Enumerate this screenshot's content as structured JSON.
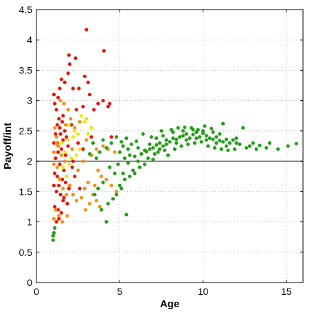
{
  "chart_data": {
    "type": "scatter",
    "title": "",
    "xlabel": "Age",
    "ylabel": "Payoff/int",
    "xlim": [
      0,
      16
    ],
    "ylim": [
      0,
      4.5
    ],
    "xticks": [
      0,
      5,
      10,
      15
    ],
    "yticks": [
      0,
      0.5,
      1,
      1.5,
      2,
      2.5,
      3,
      3.5,
      4,
      4.5
    ],
    "xtick_labels": [
      "0",
      "5",
      "10",
      "15"
    ],
    "ytick_labels": [
      "0",
      "0.5",
      "1",
      "1.5",
      "2",
      "2.5",
      "3",
      "3.5",
      "4",
      "4.5"
    ],
    "grid": true,
    "reference_line": {
      "y": 2,
      "color": "#555555"
    },
    "series": [
      {
        "color": "#e8140a",
        "points": [
          [
            1.05,
            3.1
          ],
          [
            1.1,
            2.95
          ],
          [
            1.3,
            3.05
          ],
          [
            1.25,
            2.6
          ],
          [
            1.4,
            3.2
          ],
          [
            1.5,
            3.35
          ],
          [
            1.7,
            3.3
          ],
          [
            1.9,
            3.45
          ],
          [
            2.0,
            3.6
          ],
          [
            1.95,
            3.75
          ],
          [
            2.35,
            3.7
          ],
          [
            2.2,
            3.2
          ],
          [
            2.55,
            3.2
          ],
          [
            3.0,
            4.17
          ],
          [
            2.9,
            3.4
          ],
          [
            3.1,
            3.3
          ],
          [
            3.2,
            3.1
          ],
          [
            2.8,
            2.9
          ],
          [
            2.4,
            2.85
          ],
          [
            4.05,
            3.82
          ],
          [
            4.0,
            3.0
          ],
          [
            4.4,
            2.95
          ],
          [
            4.3,
            2.9
          ],
          [
            3.7,
            2.95
          ],
          [
            3.45,
            2.85
          ],
          [
            1.2,
            2.85
          ],
          [
            1.35,
            2.7
          ],
          [
            1.55,
            2.65
          ],
          [
            1.7,
            2.5
          ],
          [
            1.45,
            2.45
          ],
          [
            1.25,
            2.3
          ],
          [
            1.6,
            2.35
          ],
          [
            1.8,
            2.4
          ],
          [
            1.5,
            2.2
          ],
          [
            1.3,
            2.15
          ],
          [
            1.15,
            2.05
          ],
          [
            1.4,
            1.95
          ],
          [
            1.65,
            1.85
          ],
          [
            1.1,
            1.8
          ],
          [
            1.25,
            1.75
          ],
          [
            1.55,
            1.7
          ],
          [
            1.35,
            1.6
          ],
          [
            1.75,
            1.65
          ],
          [
            1.2,
            1.5
          ],
          [
            1.45,
            1.45
          ],
          [
            1.6,
            1.35
          ],
          [
            1.85,
            1.3
          ],
          [
            1.1,
            1.25
          ],
          [
            1.3,
            1.2
          ],
          [
            2.15,
            1.9
          ],
          [
            2.3,
            1.75
          ],
          [
            2.6,
            1.55
          ],
          [
            1.95,
            1.55
          ],
          [
            1.05,
            1.6
          ],
          [
            1.2,
            1.0
          ],
          [
            1.35,
            1.05
          ],
          [
            1.5,
            1.15
          ],
          [
            1.65,
            1.4
          ],
          [
            2.5,
            2.3
          ],
          [
            2.8,
            2.2
          ],
          [
            3.3,
            2.4
          ],
          [
            4.5,
            2.4
          ],
          [
            1.9,
            2.25
          ],
          [
            1.75,
            2.1
          ],
          [
            1.05,
            2.3
          ],
          [
            1.15,
            2.45
          ],
          [
            1.4,
            2.55
          ],
          [
            1.6,
            2.75
          ],
          [
            2.1,
            2.6
          ],
          [
            2.2,
            2.0
          ]
        ]
      },
      {
        "color": "#f7900d",
        "points": [
          [
            1.1,
            2.55
          ],
          [
            1.2,
            2.4
          ],
          [
            1.3,
            2.25
          ],
          [
            1.5,
            2.1
          ],
          [
            1.7,
            2.0
          ],
          [
            1.05,
            1.95
          ],
          [
            1.25,
            1.9
          ],
          [
            1.4,
            1.7
          ],
          [
            1.6,
            1.55
          ],
          [
            1.8,
            1.45
          ],
          [
            2.0,
            1.6
          ],
          [
            2.2,
            1.45
          ],
          [
            2.4,
            1.35
          ],
          [
            2.7,
            1.4
          ],
          [
            2.9,
            1.55
          ],
          [
            3.1,
            1.65
          ],
          [
            3.4,
            1.45
          ],
          [
            3.6,
            1.35
          ],
          [
            3.8,
            1.25
          ],
          [
            3.5,
            1.6
          ],
          [
            3.9,
            1.75
          ],
          [
            4.2,
            1.7
          ],
          [
            4.5,
            1.6
          ],
          [
            4.8,
            1.5
          ],
          [
            1.15,
            1.2
          ],
          [
            1.35,
            1.1
          ],
          [
            1.55,
            1.0
          ],
          [
            1.05,
            1.05
          ],
          [
            2.5,
            1.85
          ],
          [
            2.8,
            2.0
          ],
          [
            3.0,
            2.35
          ],
          [
            3.3,
            2.1
          ],
          [
            3.6,
            2.2
          ],
          [
            4.0,
            2.25
          ],
          [
            4.3,
            2.2
          ],
          [
            4.7,
            2.15
          ],
          [
            2.05,
            2.7
          ],
          [
            2.3,
            2.55
          ],
          [
            1.9,
            2.85
          ],
          [
            1.65,
            2.95
          ],
          [
            1.45,
            3.0
          ],
          [
            1.75,
            2.6
          ],
          [
            2.6,
            2.65
          ],
          [
            2.15,
            2.2
          ],
          [
            1.2,
            2.3
          ],
          [
            1.05,
            2.15
          ],
          [
            3.7,
            1.85
          ],
          [
            3.2,
            1.3
          ],
          [
            2.95,
            1.2
          ],
          [
            1.85,
            1.1
          ]
        ]
      },
      {
        "color": "#f2e40e",
        "points": [
          [
            1.5,
            2.3
          ],
          [
            1.7,
            2.15
          ],
          [
            1.9,
            2.35
          ],
          [
            2.1,
            2.05
          ],
          [
            2.3,
            2.5
          ],
          [
            2.5,
            2.45
          ],
          [
            2.7,
            2.75
          ],
          [
            2.9,
            2.65
          ],
          [
            3.1,
            2.45
          ],
          [
            3.3,
            2.55
          ],
          [
            2.6,
            2.2
          ],
          [
            2.0,
            1.95
          ],
          [
            1.8,
            1.75
          ],
          [
            1.6,
            1.9
          ],
          [
            2.4,
            2.1
          ],
          [
            1.95,
            2.6
          ],
          [
            3.0,
            2.7
          ],
          [
            2.2,
            2.4
          ]
        ]
      },
      {
        "color": "#20a014",
        "points": [
          [
            1.0,
            0.7
          ],
          [
            1.0,
            0.77
          ],
          [
            1.05,
            0.82
          ],
          [
            1.1,
            0.9
          ],
          [
            4.2,
            1.0
          ],
          [
            3.9,
            1.2
          ],
          [
            5.4,
            1.12
          ],
          [
            4.3,
            1.3
          ],
          [
            4.6,
            1.38
          ],
          [
            3.5,
            1.45
          ],
          [
            4.8,
            1.45
          ],
          [
            5.1,
            1.55
          ],
          [
            5.0,
            1.6
          ],
          [
            4.0,
            1.65
          ],
          [
            5.3,
            1.7
          ],
          [
            5.6,
            1.75
          ],
          [
            5.2,
            1.8
          ],
          [
            5.8,
            1.85
          ],
          [
            4.9,
            1.95
          ],
          [
            5.5,
            1.97
          ],
          [
            6.1,
            2.0
          ],
          [
            5.3,
            2.05
          ],
          [
            5.9,
            2.08
          ],
          [
            6.3,
            2.12
          ],
          [
            6.6,
            2.16
          ],
          [
            6.8,
            2.2
          ],
          [
            7.0,
            2.22
          ],
          [
            7.2,
            2.27
          ],
          [
            7.4,
            2.3
          ],
          [
            7.6,
            2.25
          ],
          [
            7.8,
            2.35
          ],
          [
            8.0,
            2.32
          ],
          [
            8.2,
            2.38
          ],
          [
            8.4,
            2.36
          ],
          [
            8.6,
            2.4
          ],
          [
            8.8,
            2.42
          ],
          [
            9.0,
            2.45
          ],
          [
            9.2,
            2.38
          ],
          [
            9.4,
            2.44
          ],
          [
            9.6,
            2.48
          ],
          [
            9.8,
            2.4
          ],
          [
            10.0,
            2.46
          ],
          [
            10.2,
            2.42
          ],
          [
            10.4,
            2.38
          ],
          [
            10.6,
            2.36
          ],
          [
            10.8,
            2.4
          ],
          [
            11.0,
            2.34
          ],
          [
            11.2,
            2.32
          ],
          [
            11.4,
            2.36
          ],
          [
            11.6,
            2.3
          ],
          [
            11.8,
            2.35
          ],
          [
            12.0,
            2.3
          ],
          [
            12.2,
            2.28
          ],
          [
            12.6,
            2.22
          ],
          [
            12.8,
            2.25
          ],
          [
            13.0,
            2.3
          ],
          [
            13.4,
            2.26
          ],
          [
            13.8,
            2.22
          ],
          [
            14.5,
            2.2
          ],
          [
            15.1,
            2.25
          ],
          [
            15.6,
            2.29
          ],
          [
            6.4,
            2.45
          ],
          [
            6.9,
            2.4
          ],
          [
            7.5,
            2.5
          ],
          [
            8.1,
            2.52
          ],
          [
            8.5,
            2.55
          ],
          [
            8.9,
            2.56
          ],
          [
            9.3,
            2.55
          ],
          [
            9.7,
            2.52
          ],
          [
            10.1,
            2.58
          ],
          [
            10.5,
            2.54
          ],
          [
            11.2,
            2.62
          ],
          [
            12.4,
            2.55
          ],
          [
            6.0,
            2.33
          ],
          [
            5.7,
            2.28
          ],
          [
            5.4,
            2.38
          ],
          [
            5.1,
            2.32
          ],
          [
            4.8,
            2.4
          ],
          [
            4.5,
            2.3
          ],
          [
            4.2,
            2.22
          ],
          [
            4.0,
            2.35
          ],
          [
            3.8,
            2.15
          ],
          [
            3.6,
            2.05
          ],
          [
            3.4,
            2.3
          ],
          [
            3.2,
            2.12
          ],
          [
            6.5,
            2.18
          ],
          [
            6.7,
            2.05
          ],
          [
            7.1,
            2.12
          ],
          [
            7.3,
            2.15
          ],
          [
            7.7,
            2.18
          ],
          [
            8.3,
            2.2
          ],
          [
            8.7,
            2.25
          ],
          [
            9.1,
            2.28
          ],
          [
            9.5,
            2.3
          ],
          [
            9.9,
            2.32
          ],
          [
            10.3,
            2.25
          ],
          [
            10.7,
            2.22
          ],
          [
            11.1,
            2.2
          ],
          [
            11.5,
            2.18
          ],
          [
            11.9,
            2.2
          ],
          [
            6.2,
            1.9
          ],
          [
            5.9,
            1.8
          ],
          [
            6.5,
            1.95
          ],
          [
            7.0,
            2.03
          ],
          [
            7.9,
            2.1
          ],
          [
            5.0,
            2.15
          ],
          [
            5.6,
            2.1
          ],
          [
            4.4,
            1.9
          ],
          [
            4.7,
            1.8
          ],
          [
            3.7,
            1.55
          ],
          [
            7.2,
            2.38
          ],
          [
            7.8,
            2.28
          ],
          [
            8.4,
            2.3
          ],
          [
            9.0,
            2.35
          ],
          [
            9.6,
            2.38
          ],
          [
            10.2,
            2.35
          ],
          [
            10.8,
            2.3
          ],
          [
            11.4,
            2.25
          ],
          [
            12.0,
            2.38
          ],
          [
            13.2,
            2.2
          ],
          [
            14.0,
            2.3
          ],
          [
            7.6,
            2.42
          ],
          [
            8.2,
            2.48
          ],
          [
            8.8,
            2.5
          ],
          [
            9.4,
            2.52
          ],
          [
            10.0,
            2.5
          ],
          [
            10.6,
            2.48
          ],
          [
            11.0,
            2.45
          ],
          [
            7.4,
            2.2
          ],
          [
            6.8,
            2.28
          ],
          [
            6.1,
            2.22
          ],
          [
            5.5,
            2.2
          ],
          [
            5.2,
            2.25
          ]
        ]
      }
    ]
  }
}
